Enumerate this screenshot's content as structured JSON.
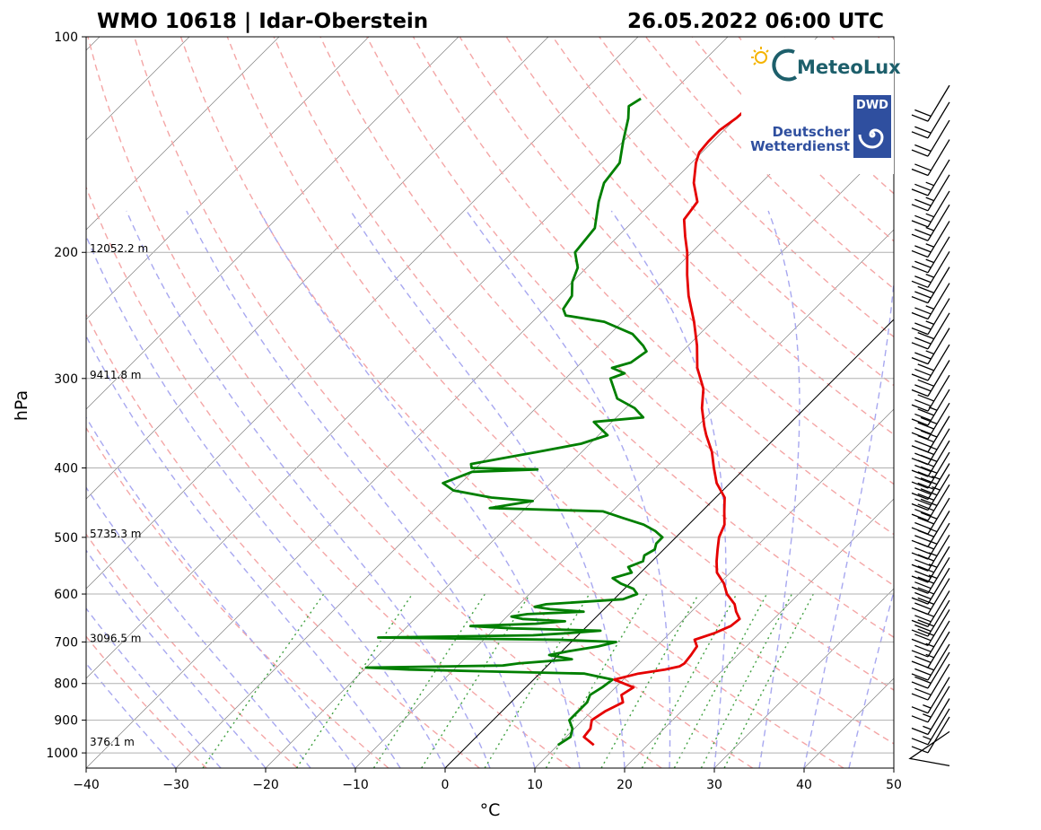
{
  "header": {
    "station": "WMO 10618 | Idar-Oberstein",
    "datetime": "26.05.2022 06:00 UTC"
  },
  "logos": {
    "meteolux": "MeteoLux",
    "dwd_badge": "DWD",
    "dwd_line1": "Deutscher",
    "dwd_line2": "Wetterdienst"
  },
  "colors": {
    "temperature": "#e50000",
    "dewpoint": "#007f00",
    "dry_adiabat": "#f4a6a6",
    "moist_adiabat": "#a8a8f0",
    "mixing_ratio": "#40a040",
    "isotherm": "#808080",
    "dwd_blue": "#2f4f9f",
    "meteolux_teal": "#1d5f6b"
  },
  "chart_data": {
    "type": "skew-t",
    "title": "WMO 10618 | Idar-Oberstein",
    "subtitle": "26.05.2022 06:00 UTC",
    "xlabel": "°C",
    "ylabel": "hPa",
    "xlim": [
      -40,
      50
    ],
    "ylim": [
      1050,
      100
    ],
    "x_ticks": [
      -40,
      -30,
      -20,
      -10,
      0,
      10,
      20,
      30,
      40,
      50
    ],
    "x_tick_labels": [
      "−40",
      "−30",
      "−20",
      "−10",
      "0",
      "10",
      "20",
      "30",
      "40",
      "50"
    ],
    "y_ticks": [
      100,
      200,
      300,
      400,
      500,
      600,
      700,
      800,
      900,
      1000
    ],
    "y_tick_labels": [
      "100",
      "200",
      "300",
      "400",
      "500",
      "600",
      "700",
      "800",
      "900",
      "1000"
    ],
    "y_scale": "log",
    "grid": true,
    "height_labels": [
      {
        "p": 200,
        "text": "12052.2 m"
      },
      {
        "p": 300,
        "text": "9411.8 m"
      },
      {
        "p": 500,
        "text": "5735.3 m"
      },
      {
        "p": 700,
        "text": "3096.5 m"
      },
      {
        "p": 1000,
        "text": "376.1 m"
      }
    ],
    "series": [
      {
        "key": "temperature",
        "points": [
          [
            975,
            14.0
          ],
          [
            950,
            12.0
          ],
          [
            925,
            11.8
          ],
          [
            900,
            11.0
          ],
          [
            875,
            11.5
          ],
          [
            850,
            12.5
          ],
          [
            830,
            11.5
          ],
          [
            810,
            12.0
          ],
          [
            790,
            9.0
          ],
          [
            775,
            11.0
          ],
          [
            765,
            13.5
          ],
          [
            757,
            14.8
          ],
          [
            750,
            15.0
          ],
          [
            730,
            14.8
          ],
          [
            710,
            14.5
          ],
          [
            695,
            13.5
          ],
          [
            680,
            15.0
          ],
          [
            665,
            16.0
          ],
          [
            650,
            16.2
          ],
          [
            635,
            15.0
          ],
          [
            620,
            14.0
          ],
          [
            600,
            12.0
          ],
          [
            580,
            10.5
          ],
          [
            560,
            8.5
          ],
          [
            540,
            7.2
          ],
          [
            520,
            6.0
          ],
          [
            500,
            4.8
          ],
          [
            480,
            4.0
          ],
          [
            460,
            2.5
          ],
          [
            440,
            1.0
          ],
          [
            420,
            -1.5
          ],
          [
            400,
            -3.5
          ],
          [
            380,
            -5.5
          ],
          [
            360,
            -8.0
          ],
          [
            350,
            -9.2
          ],
          [
            330,
            -11.5
          ],
          [
            310,
            -13.5
          ],
          [
            290,
            -16.5
          ],
          [
            270,
            -19.0
          ],
          [
            250,
            -22.0
          ],
          [
            230,
            -25.5
          ],
          [
            215,
            -28.0
          ],
          [
            200,
            -30.5
          ],
          [
            190,
            -32.5
          ],
          [
            180,
            -34.5
          ],
          [
            170,
            -35.0
          ],
          [
            160,
            -37.5
          ],
          [
            150,
            -39.5
          ],
          [
            145,
            -40.3
          ],
          [
            140,
            -40.5
          ],
          [
            135,
            -40.5
          ],
          [
            130,
            -40.0
          ],
          [
            125,
            -39.8
          ],
          [
            122,
            -39.4
          ]
        ]
      },
      {
        "key": "dewpoint",
        "points": [
          [
            975,
            10.0
          ],
          [
            950,
            10.5
          ],
          [
            925,
            9.8
          ],
          [
            900,
            8.5
          ],
          [
            875,
            8.5
          ],
          [
            850,
            8.5
          ],
          [
            830,
            8.0
          ],
          [
            810,
            8.5
          ],
          [
            790,
            8.8
          ],
          [
            775,
            5.0
          ],
          [
            770,
            -5.0
          ],
          [
            765,
            -15.0
          ],
          [
            760,
            -20.0
          ],
          [
            755,
            -5.0
          ],
          [
            750,
            -3.5
          ],
          [
            740,
            2.0
          ],
          [
            730,
            -1.0
          ],
          [
            720,
            1.0
          ],
          [
            710,
            3.5
          ],
          [
            700,
            5.0
          ],
          [
            695,
            -1.5
          ],
          [
            690,
            -22.0
          ],
          [
            685,
            -5.0
          ],
          [
            680,
            -1.0
          ],
          [
            675,
            2.0
          ],
          [
            670,
            -8.0
          ],
          [
            665,
            -13.0
          ],
          [
            660,
            -6.0
          ],
          [
            655,
            -3.0
          ],
          [
            650,
            -8.0
          ],
          [
            645,
            -9.5
          ],
          [
            640,
            -8.0
          ],
          [
            635,
            -2.0
          ],
          [
            630,
            -6.0
          ],
          [
            625,
            -8.0
          ],
          [
            620,
            -7.0
          ],
          [
            610,
            1.0
          ],
          [
            600,
            2.0
          ],
          [
            590,
            1.0
          ],
          [
            580,
            -1.0
          ],
          [
            570,
            -2.5
          ],
          [
            560,
            -1.0
          ],
          [
            550,
            -2.0
          ],
          [
            540,
            -1.0
          ],
          [
            530,
            -1.5
          ],
          [
            520,
            -1.0
          ],
          [
            510,
            -1.5
          ],
          [
            500,
            -1.5
          ],
          [
            490,
            -3.0
          ],
          [
            480,
            -5.0
          ],
          [
            470,
            -8.0
          ],
          [
            460,
            -11.0
          ],
          [
            455,
            -24.0
          ],
          [
            450,
            -22.0
          ],
          [
            445,
            -20.0
          ],
          [
            440,
            -25.0
          ],
          [
            430,
            -30.0
          ],
          [
            420,
            -32.0
          ],
          [
            405,
            -30.0
          ],
          [
            402,
            -23.0
          ],
          [
            400,
            -30.5
          ],
          [
            395,
            -31.0
          ],
          [
            380,
            -25.0
          ],
          [
            370,
            -21.0
          ],
          [
            360,
            -19.0
          ],
          [
            350,
            -21.0
          ],
          [
            345,
            -22.0
          ],
          [
            340,
            -17.0
          ],
          [
            330,
            -19.0
          ],
          [
            320,
            -22.0
          ],
          [
            300,
            -25.0
          ],
          [
            295,
            -24.0
          ],
          [
            290,
            -26.0
          ],
          [
            285,
            -24.5
          ],
          [
            275,
            -24.0
          ],
          [
            270,
            -25.0
          ],
          [
            260,
            -27.5
          ],
          [
            250,
            -32.0
          ],
          [
            245,
            -37.0
          ],
          [
            240,
            -38.0
          ],
          [
            230,
            -38.5
          ],
          [
            220,
            -40.0
          ],
          [
            210,
            -41.0
          ],
          [
            200,
            -43.0
          ],
          [
            185,
            -43.5
          ],
          [
            170,
            -46.0
          ],
          [
            160,
            -47.5
          ],
          [
            150,
            -48.0
          ],
          [
            140,
            -50.0
          ],
          [
            130,
            -52.0
          ],
          [
            125,
            -53.3
          ],
          [
            122,
            -52.8
          ]
        ]
      }
    ],
    "wind_barbs": [
      {
        "p": 995,
        "speed": 5
      },
      {
        "p": 960,
        "speed": 10
      },
      {
        "p": 935,
        "speed": 15
      },
      {
        "p": 905,
        "speed": 15
      },
      {
        "p": 870,
        "speed": 15
      },
      {
        "p": 845,
        "speed": 15
      },
      {
        "p": 810,
        "speed": 20
      },
      {
        "p": 780,
        "speed": 20
      },
      {
        "p": 760,
        "speed": 25
      },
      {
        "p": 730,
        "speed": 25
      },
      {
        "p": 705,
        "speed": 25
      },
      {
        "p": 680,
        "speed": 30
      },
      {
        "p": 660,
        "speed": 30
      },
      {
        "p": 640,
        "speed": 30
      },
      {
        "p": 615,
        "speed": 30
      },
      {
        "p": 595,
        "speed": 30
      },
      {
        "p": 575,
        "speed": 35
      },
      {
        "p": 555,
        "speed": 35
      },
      {
        "p": 535,
        "speed": 35
      },
      {
        "p": 515,
        "speed": 35
      },
      {
        "p": 495,
        "speed": 35
      },
      {
        "p": 475,
        "speed": 40
      },
      {
        "p": 455,
        "speed": 40
      },
      {
        "p": 440,
        "speed": 45
      },
      {
        "p": 425,
        "speed": 45
      },
      {
        "p": 410,
        "speed": 40
      },
      {
        "p": 395,
        "speed": 40
      },
      {
        "p": 380,
        "speed": 35
      },
      {
        "p": 365,
        "speed": 40
      },
      {
        "p": 350,
        "speed": 40
      },
      {
        "p": 335,
        "speed": 35
      },
      {
        "p": 320,
        "speed": 30
      },
      {
        "p": 305,
        "speed": 30
      },
      {
        "p": 290,
        "speed": 30
      },
      {
        "p": 275,
        "speed": 25
      },
      {
        "p": 262,
        "speed": 30
      },
      {
        "p": 250,
        "speed": 25
      },
      {
        "p": 238,
        "speed": 25
      },
      {
        "p": 226,
        "speed": 30
      },
      {
        "p": 215,
        "speed": 25
      },
      {
        "p": 205,
        "speed": 25
      },
      {
        "p": 195,
        "speed": 25
      },
      {
        "p": 185,
        "speed": 25
      },
      {
        "p": 177,
        "speed": 25
      },
      {
        "p": 168,
        "speed": 25
      },
      {
        "p": 160,
        "speed": 25
      },
      {
        "p": 150,
        "speed": 20
      },
      {
        "p": 141,
        "speed": 20
      },
      {
        "p": 133,
        "speed": 20
      },
      {
        "p": 126,
        "speed": 20
      }
    ]
  }
}
